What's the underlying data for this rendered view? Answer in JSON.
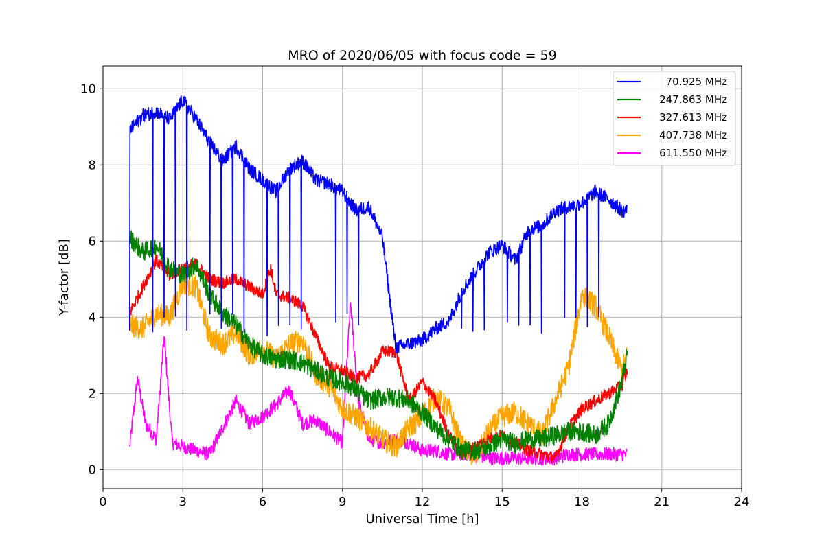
{
  "chart_data": {
    "type": "line",
    "title": "MRO of 2020/06/05 with focus code = 59",
    "xlabel": "Universal Time [h]",
    "ylabel": "Y-factor [dB]",
    "xlim": [
      0,
      24
    ],
    "ylim": [
      -0.5,
      10.6
    ],
    "xticks": [
      0,
      3,
      6,
      9,
      12,
      15,
      18,
      21,
      24
    ],
    "xtick_labels": [
      "0",
      "3",
      "6",
      "9",
      "12",
      "15",
      "18",
      "21",
      "24"
    ],
    "yticks": [
      0,
      2,
      4,
      6,
      8,
      10
    ],
    "ytick_labels": [
      "0",
      "2",
      "4",
      "6",
      "8",
      "10"
    ],
    "grid": true,
    "legend_position": "top-right",
    "series": [
      {
        "name": "70.925 MHz",
        "color": "#0000ff",
        "x": [
          1.0,
          1.5,
          2.0,
          2.5,
          3.0,
          3.5,
          4.0,
          4.5,
          5.0,
          5.5,
          6.0,
          6.5,
          7.0,
          7.5,
          8.0,
          8.5,
          9.0,
          9.5,
          10.0,
          10.5,
          11.0,
          11.5,
          12.0,
          12.5,
          13.0,
          13.5,
          14.0,
          14.5,
          15.0,
          15.5,
          16.0,
          16.5,
          17.0,
          17.5,
          18.0,
          18.5,
          19.0,
          19.5,
          19.7
        ],
        "values": [
          8.9,
          9.3,
          9.4,
          9.2,
          9.7,
          9.2,
          8.6,
          8.1,
          8.5,
          7.9,
          7.6,
          7.3,
          7.9,
          8.1,
          7.6,
          7.5,
          7.3,
          6.8,
          6.9,
          6.1,
          3.2,
          3.3,
          3.4,
          3.7,
          3.9,
          4.7,
          5.2,
          5.7,
          5.9,
          5.5,
          6.3,
          6.4,
          6.8,
          6.9,
          7.0,
          7.3,
          7.1,
          6.8,
          6.8
        ],
        "dip_interval_h": 0.43,
        "dip_level": 3.5
      },
      {
        "name": "247.863 MHz",
        "color": "#008000",
        "x": [
          1.0,
          1.5,
          2.0,
          2.5,
          3.0,
          3.5,
          4.0,
          4.5,
          5.0,
          5.5,
          6.0,
          6.5,
          7.0,
          7.5,
          8.0,
          8.5,
          9.0,
          9.5,
          10.0,
          10.5,
          11.0,
          11.5,
          12.0,
          12.5,
          13.0,
          13.5,
          14.0,
          14.5,
          15.0,
          15.5,
          16.0,
          16.5,
          17.0,
          17.5,
          18.0,
          18.5,
          19.0,
          19.5,
          19.7
        ],
        "values": [
          6.1,
          5.7,
          5.9,
          5.3,
          5.1,
          5.4,
          4.6,
          4.1,
          3.8,
          3.3,
          3.0,
          2.9,
          2.9,
          2.8,
          2.6,
          2.4,
          2.3,
          2.1,
          1.8,
          1.9,
          1.9,
          1.8,
          1.5,
          1.1,
          0.8,
          0.5,
          0.5,
          0.6,
          0.8,
          0.7,
          0.8,
          0.8,
          0.9,
          1.0,
          1.0,
          0.9,
          1.2,
          2.3,
          3.0
        ]
      },
      {
        "name": "327.613 MHz",
        "color": "#ff0000",
        "x": [
          1.0,
          1.5,
          2.0,
          2.5,
          3.0,
          3.5,
          4.0,
          4.5,
          5.0,
          5.5,
          6.0,
          6.3,
          6.5,
          7.0,
          7.5,
          8.0,
          8.5,
          9.0,
          9.5,
          10.0,
          10.5,
          11.0,
          11.5,
          12.0,
          12.5,
          13.0,
          13.5,
          14.0,
          14.5,
          15.0,
          15.5,
          16.0,
          16.5,
          17.0,
          17.5,
          18.0,
          18.5,
          19.0,
          19.5,
          19.7
        ],
        "values": [
          4.1,
          4.8,
          5.5,
          5.1,
          5.3,
          5.4,
          5.0,
          4.9,
          5.0,
          4.8,
          4.6,
          5.3,
          4.6,
          4.5,
          4.3,
          3.5,
          2.7,
          2.6,
          2.4,
          2.5,
          3.1,
          3.1,
          1.8,
          2.3,
          1.8,
          0.9,
          0.4,
          0.6,
          0.8,
          0.9,
          0.7,
          0.5,
          0.4,
          0.3,
          1.1,
          1.6,
          1.8,
          2.0,
          2.2,
          2.6
        ]
      },
      {
        "name": "407.738 MHz",
        "color": "#ffa500",
        "x": [
          1.0,
          1.5,
          2.0,
          2.5,
          3.0,
          3.5,
          4.0,
          4.5,
          5.0,
          5.5,
          6.0,
          6.5,
          7.0,
          7.5,
          8.0,
          8.5,
          9.0,
          9.5,
          10.0,
          10.5,
          11.0,
          11.5,
          12.0,
          12.5,
          13.0,
          13.5,
          14.0,
          14.5,
          15.0,
          15.5,
          16.0,
          16.5,
          17.0,
          17.5,
          18.0,
          18.5,
          19.0,
          19.5,
          19.7
        ],
        "values": [
          3.8,
          3.7,
          4.1,
          4.0,
          4.9,
          4.8,
          3.5,
          3.3,
          3.6,
          3.0,
          3.2,
          2.9,
          3.3,
          3.4,
          2.5,
          2.2,
          1.6,
          1.4,
          1.1,
          0.8,
          0.6,
          1.1,
          1.4,
          1.9,
          1.6,
          0.6,
          0.3,
          1.0,
          1.4,
          1.5,
          1.2,
          0.9,
          1.8,
          2.7,
          4.6,
          4.3,
          3.5,
          2.6,
          3.0
        ]
      },
      {
        "name": "611.550 MHz",
        "color": "#ff00ff",
        "x": [
          1.0,
          1.3,
          1.6,
          2.0,
          2.3,
          2.6,
          3.0,
          3.5,
          4.0,
          4.5,
          5.0,
          5.5,
          6.0,
          6.5,
          7.0,
          7.5,
          8.0,
          8.5,
          9.0,
          9.3,
          9.6,
          10.0,
          10.5,
          11.0,
          11.5,
          12.0,
          12.5,
          13.0,
          13.5,
          14.0,
          14.5,
          15.0,
          15.5,
          16.0,
          16.5,
          17.0,
          17.5,
          18.0,
          18.5,
          19.0,
          19.5,
          19.7
        ],
        "values": [
          0.6,
          2.4,
          1.2,
          0.8,
          3.5,
          0.7,
          0.6,
          0.5,
          0.4,
          1.1,
          1.8,
          1.2,
          1.4,
          1.7,
          2.1,
          1.2,
          1.3,
          1.0,
          0.7,
          4.4,
          1.8,
          0.8,
          0.7,
          0.8,
          0.7,
          0.5,
          0.5,
          0.4,
          0.4,
          0.4,
          0.3,
          0.3,
          0.3,
          0.3,
          0.3,
          0.3,
          0.4,
          0.4,
          0.4,
          0.4,
          0.4,
          0.4
        ]
      }
    ]
  }
}
